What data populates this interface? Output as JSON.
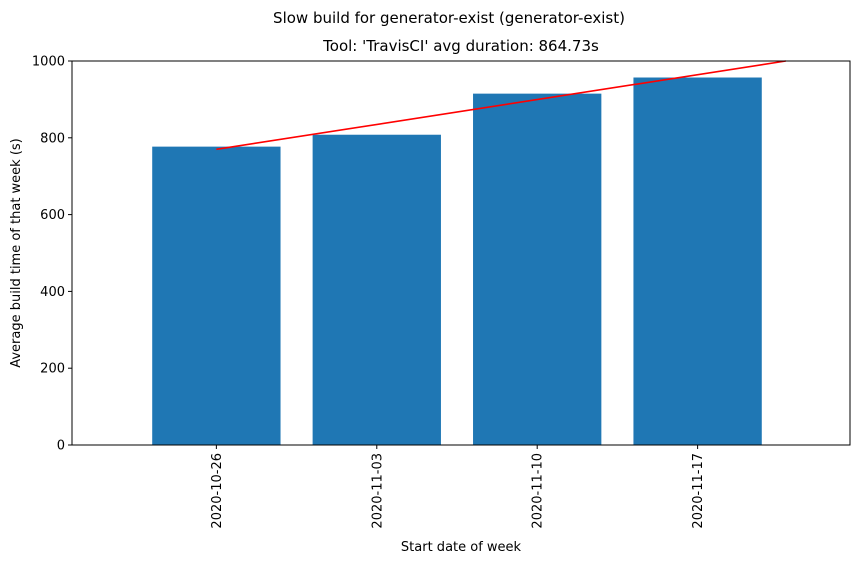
{
  "chart_data": {
    "type": "bar",
    "suptitle": "Slow build for generator-exist (generator-exist)",
    "title": "Tool: 'TravisCI' avg duration: 864.73s",
    "xlabel": "Start date of week",
    "ylabel": "Average build time of that week (s)",
    "categories": [
      "2020-10-26",
      "2020-11-03",
      "2020-11-10",
      "2020-11-17"
    ],
    "values": [
      777,
      808,
      915,
      957
    ],
    "ylim": [
      0,
      1000
    ],
    "yticks": [
      0,
      200,
      400,
      600,
      800,
      1000
    ],
    "bar_color": "#1f77b4",
    "trend_line": {
      "color": "#ff0000",
      "x_range": [
        0,
        3.55
      ],
      "y_start": 770,
      "y_end": 1000
    },
    "grid": false,
    "legend": "none"
  }
}
